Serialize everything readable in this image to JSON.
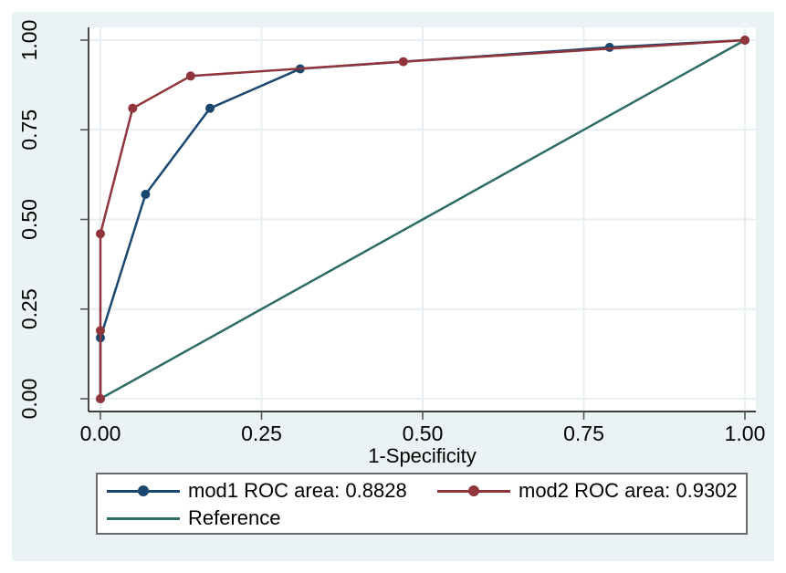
{
  "figure": {
    "colors": {
      "canvas_background": "#eaf2f3",
      "plot_background": "#ffffff",
      "gridline": "#e7eff2",
      "axis_line": "#000000",
      "tick_mark": "#555555",
      "text": "#000000",
      "legend_border": "#6a6a6a",
      "legend_background": "#ffffff"
    }
  },
  "chart_data": {
    "type": "line",
    "title": "",
    "xlabel": "1-Specificity",
    "ylabel": "",
    "xlim": [
      0,
      1
    ],
    "ylim": [
      0,
      1
    ],
    "grid": true,
    "legend_position": "bottom",
    "xticks": [
      "0.00",
      "0.25",
      "0.50",
      "0.75",
      "1.00"
    ],
    "yticks": [
      "0.00",
      "0.25",
      "0.50",
      "0.75",
      "1.00"
    ],
    "series": [
      {
        "id": "mod1",
        "name": "mod1 ROC area: 0.8828",
        "roc_area": 0.8828,
        "color": "#1a476f",
        "marker": true,
        "points": [
          [
            0,
            0
          ],
          [
            0,
            0.17
          ],
          [
            0.07,
            0.57
          ],
          [
            0.17,
            0.81
          ],
          [
            0.31,
            0.92
          ],
          [
            0.79,
            0.98
          ],
          [
            1,
            1
          ]
        ]
      },
      {
        "id": "mod2",
        "name": "mod2 ROC area: 0.9302",
        "roc_area": 0.9302,
        "color": "#90353b",
        "marker": true,
        "points": [
          [
            0,
            0
          ],
          [
            0,
            0.19
          ],
          [
            0,
            0.46
          ],
          [
            0.05,
            0.81
          ],
          [
            0.14,
            0.9
          ],
          [
            0.47,
            0.94
          ],
          [
            1,
            1
          ]
        ]
      },
      {
        "id": "reference",
        "name": "Reference",
        "color": "#2d6d66",
        "marker": false,
        "points": [
          [
            0,
            0
          ],
          [
            1,
            1
          ]
        ]
      }
    ]
  }
}
